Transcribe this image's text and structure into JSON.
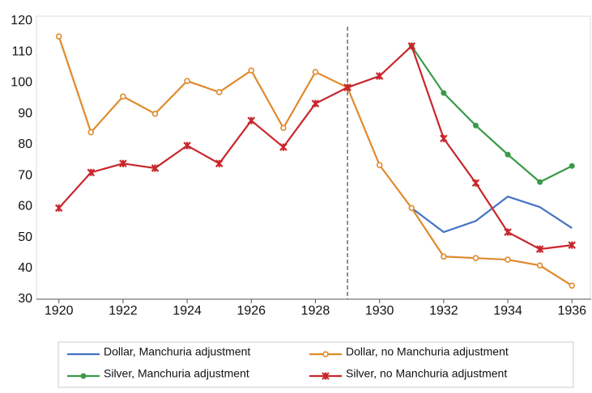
{
  "chart_data": {
    "type": "line",
    "x": [
      1920,
      1921,
      1922,
      1923,
      1924,
      1925,
      1926,
      1927,
      1928,
      1929,
      1930,
      1931,
      1932,
      1933,
      1934,
      1935,
      1936
    ],
    "xlim": [
      1919.3,
      1936.6
    ],
    "xticks": [
      1920,
      1922,
      1924,
      1926,
      1928,
      1930,
      1932,
      1934,
      1936
    ],
    "ylim": [
      30,
      120
    ],
    "yticks": [
      30,
      40,
      50,
      60,
      70,
      80,
      90,
      100,
      110,
      120
    ],
    "vline": 1929,
    "series": [
      {
        "name": "Dollar, Manchuria adjustment",
        "color": "#4472c4",
        "marker": "none",
        "values": [
          null,
          null,
          null,
          null,
          null,
          null,
          null,
          null,
          null,
          null,
          null,
          59.5,
          51.7,
          55.3,
          63.2,
          59.8,
          53
        ]
      },
      {
        "name": "Dollar, no Manchuria adjustment",
        "color": "#e08a2c",
        "marker": "open-circle",
        "values": [
          115,
          84,
          95.6,
          90,
          100.6,
          97,
          104,
          85.4,
          103.5,
          98.5,
          73.4,
          59.5,
          43.8,
          43.3,
          42.8,
          40.9,
          34.4
        ]
      },
      {
        "name": "Silver, Manchuria adjustment",
        "color": "#3a9a48",
        "marker": "circle",
        "values": [
          null,
          null,
          null,
          null,
          null,
          null,
          null,
          null,
          null,
          null,
          null,
          111.9,
          96.7,
          86.2,
          76.8,
          67.9,
          73.1
        ]
      },
      {
        "name": "Silver, no Manchuria adjustment",
        "color": "#c8262b",
        "marker": "star",
        "values": [
          59.5,
          71,
          73.9,
          72.4,
          79.7,
          73.9,
          87.8,
          79.2,
          93.3,
          98.5,
          102.2,
          111.9,
          82,
          67.6,
          51.7,
          46.2,
          47.5
        ]
      }
    ]
  }
}
